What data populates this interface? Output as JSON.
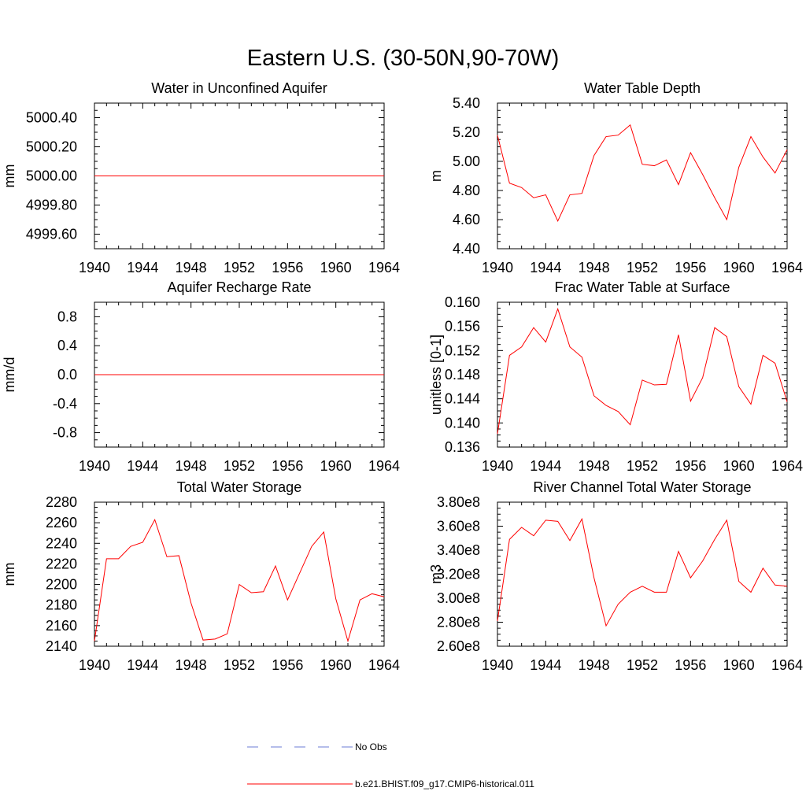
{
  "title": "Eastern U.S. (30-50N,90-70W)",
  "legend": [
    {
      "label": "No Obs",
      "color": "#6b7bd6",
      "dash": true
    },
    {
      "label": "b.e21.BHIST.f09_g17.CMIP6-historical.011",
      "color": "#ff0000",
      "dash": false
    }
  ],
  "chart_data": [
    {
      "type": "line",
      "title": "Water in Unconfined Aquifer",
      "ylabel": "mm",
      "xlim": [
        1940,
        1964
      ],
      "ylim": [
        4999.5,
        5000.5
      ],
      "xticks": [
        "1940",
        "1944",
        "1948",
        "1952",
        "1956",
        "1960",
        "1964"
      ],
      "yticks": [
        {
          "v": 5000.4,
          "label": "5000.40"
        },
        {
          "v": 5000.2,
          "label": "5000.20"
        },
        {
          "v": 5000.0,
          "label": "5000.00"
        },
        {
          "v": 4999.8,
          "label": "4999.80"
        },
        {
          "v": 4999.6,
          "label": "4999.60"
        }
      ],
      "x": [
        1940,
        1941,
        1942,
        1943,
        1944,
        1945,
        1946,
        1947,
        1948,
        1949,
        1950,
        1951,
        1952,
        1953,
        1954,
        1955,
        1956,
        1957,
        1958,
        1959,
        1960,
        1961,
        1962,
        1963,
        1964
      ],
      "series": [
        {
          "color": "#ff0000",
          "values": [
            5000,
            5000,
            5000,
            5000,
            5000,
            5000,
            5000,
            5000,
            5000,
            5000,
            5000,
            5000,
            5000,
            5000,
            5000,
            5000,
            5000,
            5000,
            5000,
            5000,
            5000,
            5000,
            5000,
            5000,
            5000
          ]
        }
      ]
    },
    {
      "type": "line",
      "title": "Water Table Depth",
      "ylabel": "m",
      "xlim": [
        1940,
        1964
      ],
      "ylim": [
        4.4,
        5.4
      ],
      "xticks": [
        "1940",
        "1944",
        "1948",
        "1952",
        "1956",
        "1960",
        "1964"
      ],
      "yticks": [
        {
          "v": 5.4,
          "label": "5.40"
        },
        {
          "v": 5.2,
          "label": "5.20"
        },
        {
          "v": 5.0,
          "label": "5.00"
        },
        {
          "v": 4.8,
          "label": "4.80"
        },
        {
          "v": 4.6,
          "label": "4.60"
        },
        {
          "v": 4.4,
          "label": "4.40"
        }
      ],
      "x": [
        1940,
        1941,
        1942,
        1943,
        1944,
        1945,
        1946,
        1947,
        1948,
        1949,
        1950,
        1951,
        1952,
        1953,
        1954,
        1955,
        1956,
        1957,
        1958,
        1959,
        1960,
        1961,
        1962,
        1963,
        1964
      ],
      "series": [
        {
          "color": "#ff0000",
          "values": [
            5.18,
            4.85,
            4.82,
            4.75,
            4.77,
            4.59,
            4.77,
            4.78,
            5.04,
            5.17,
            5.18,
            5.25,
            4.98,
            4.97,
            5.01,
            4.84,
            5.06,
            4.91,
            4.75,
            4.6,
            4.96,
            5.17,
            5.03,
            4.92,
            5.08
          ]
        }
      ]
    },
    {
      "type": "line",
      "title": "Aquifer Recharge Rate",
      "ylabel": "mm/d",
      "xlim": [
        1940,
        1964
      ],
      "ylim": [
        -1.0,
        1.0
      ],
      "xticks": [
        "1940",
        "1944",
        "1948",
        "1952",
        "1956",
        "1960",
        "1964"
      ],
      "yticks": [
        {
          "v": 0.8,
          "label": "0.8"
        },
        {
          "v": 0.4,
          "label": "0.4"
        },
        {
          "v": 0.0,
          "label": "0.0"
        },
        {
          "v": -0.4,
          "label": "-0.4"
        },
        {
          "v": -0.8,
          "label": "-0.8"
        }
      ],
      "x": [
        1940,
        1941,
        1942,
        1943,
        1944,
        1945,
        1946,
        1947,
        1948,
        1949,
        1950,
        1951,
        1952,
        1953,
        1954,
        1955,
        1956,
        1957,
        1958,
        1959,
        1960,
        1961,
        1962,
        1963,
        1964
      ],
      "series": [
        {
          "color": "#ff0000",
          "values": [
            0,
            0,
            0,
            0,
            0,
            0,
            0,
            0,
            0,
            0,
            0,
            0,
            0,
            0,
            0,
            0,
            0,
            0,
            0,
            0,
            0,
            0,
            0,
            0,
            0
          ]
        }
      ]
    },
    {
      "type": "line",
      "title": "Frac Water Table at Surface",
      "ylabel": "unitless [0-1]",
      "xlim": [
        1940,
        1964
      ],
      "ylim": [
        0.136,
        0.16
      ],
      "xticks": [
        "1940",
        "1944",
        "1948",
        "1952",
        "1956",
        "1960",
        "1964"
      ],
      "yticks": [
        {
          "v": 0.16,
          "label": "0.160"
        },
        {
          "v": 0.156,
          "label": "0.156"
        },
        {
          "v": 0.152,
          "label": "0.152"
        },
        {
          "v": 0.148,
          "label": "0.148"
        },
        {
          "v": 0.144,
          "label": "0.144"
        },
        {
          "v": 0.14,
          "label": "0.140"
        },
        {
          "v": 0.136,
          "label": "0.136"
        }
      ],
      "x": [
        1940,
        1941,
        1942,
        1943,
        1944,
        1945,
        1946,
        1947,
        1948,
        1949,
        1950,
        1951,
        1952,
        1953,
        1954,
        1955,
        1956,
        1957,
        1958,
        1959,
        1960,
        1961,
        1962,
        1963,
        1964
      ],
      "series": [
        {
          "color": "#ff0000",
          "values": [
            0.1382,
            0.1512,
            0.1526,
            0.1558,
            0.1534,
            0.1589,
            0.1526,
            0.1509,
            0.1445,
            0.1429,
            0.1419,
            0.1397,
            0.1471,
            0.1463,
            0.1464,
            0.1546,
            0.1436,
            0.1475,
            0.1558,
            0.1543,
            0.146,
            0.1431,
            0.1512,
            0.1499,
            0.1435
          ]
        }
      ]
    },
    {
      "type": "line",
      "title": "Total Water Storage",
      "ylabel": "mm",
      "xlim": [
        1940,
        1964
      ],
      "ylim": [
        2140,
        2280
      ],
      "xticks": [
        "1940",
        "1944",
        "1948",
        "1952",
        "1956",
        "1960",
        "1964"
      ],
      "yticks": [
        {
          "v": 2280,
          "label": "2280"
        },
        {
          "v": 2260,
          "label": "2260"
        },
        {
          "v": 2240,
          "label": "2240"
        },
        {
          "v": 2220,
          "label": "2220"
        },
        {
          "v": 2200,
          "label": "2200"
        },
        {
          "v": 2180,
          "label": "2180"
        },
        {
          "v": 2160,
          "label": "2160"
        },
        {
          "v": 2140,
          "label": "2140"
        }
      ],
      "x": [
        1940,
        1941,
        1942,
        1943,
        1944,
        1945,
        1946,
        1947,
        1948,
        1949,
        1950,
        1951,
        1952,
        1953,
        1954,
        1955,
        1956,
        1957,
        1958,
        1959,
        1960,
        1961,
        1962,
        1963,
        1964
      ],
      "series": [
        {
          "color": "#ff0000",
          "values": [
            2145,
            2225,
            2225,
            2237,
            2241,
            2263,
            2227,
            2228,
            2182,
            2146,
            2147,
            2152,
            2200,
            2192,
            2193,
            2218,
            2185,
            2211,
            2237,
            2251,
            2186,
            2145,
            2185,
            2191,
            2188
          ]
        }
      ]
    },
    {
      "type": "line",
      "title": "River Channel Total Water Storage",
      "ylabel": "m3",
      "xlim": [
        1940,
        1964
      ],
      "ylim": [
        260000000.0,
        380000000.0
      ],
      "xticks": [
        "1940",
        "1944",
        "1948",
        "1952",
        "1956",
        "1960",
        "1964"
      ],
      "yticks": [
        {
          "v": 380000000.0,
          "label": "3.80e8"
        },
        {
          "v": 360000000.0,
          "label": "3.60e8"
        },
        {
          "v": 340000000.0,
          "label": "3.40e8"
        },
        {
          "v": 320000000.0,
          "label": "3.20e8"
        },
        {
          "v": 300000000.0,
          "label": "3.00e8"
        },
        {
          "v": 280000000.0,
          "label": "2.80e8"
        },
        {
          "v": 260000000.0,
          "label": "2.60e8"
        }
      ],
      "x": [
        1940,
        1941,
        1942,
        1943,
        1944,
        1945,
        1946,
        1947,
        1948,
        1949,
        1950,
        1951,
        1952,
        1953,
        1954,
        1955,
        1956,
        1957,
        1958,
        1959,
        1960,
        1961,
        1962,
        1963,
        1964
      ],
      "series": [
        {
          "color": "#ff0000",
          "values": [
            281000000.0,
            349000000.0,
            359000000.0,
            352000000.0,
            365000000.0,
            364000000.0,
            348000000.0,
            366000000.0,
            317000000.0,
            277000000.0,
            295000000.0,
            305000000.0,
            310000000.0,
            305000000.0,
            305000000.0,
            339000000.0,
            317000000.0,
            331000000.0,
            349000000.0,
            365000000.0,
            314000000.0,
            305000000.0,
            325000000.0,
            311000000.0,
            310000000.0
          ]
        }
      ]
    }
  ]
}
